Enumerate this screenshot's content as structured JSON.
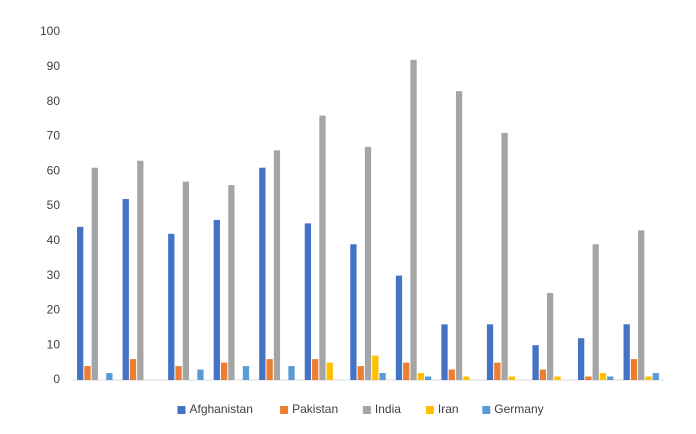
{
  "chart_data": {
    "type": "bar",
    "categories": [
      null,
      null,
      null,
      null,
      null,
      null,
      null,
      null,
      null,
      null,
      null,
      null,
      null
    ],
    "series": [
      {
        "name": "Afghanistan",
        "color": "#4472c4",
        "values": [
          44,
          52,
          42,
          46,
          61,
          45,
          39,
          30,
          16,
          16,
          10,
          12,
          16
        ]
      },
      {
        "name": "Pakistan",
        "color": "#ed7d31",
        "values": [
          4,
          6,
          4,
          5,
          6,
          6,
          4,
          5,
          3,
          5,
          3,
          1,
          6
        ]
      },
      {
        "name": "India",
        "color": "#a5a5a5",
        "values": [
          61,
          63,
          57,
          56,
          66,
          76,
          67,
          92,
          83,
          71,
          25,
          39,
          43
        ]
      },
      {
        "name": "Iran",
        "color": "#ffc000",
        "values": [
          0,
          0,
          0,
          0,
          0,
          5,
          7,
          2,
          1,
          1,
          1,
          2,
          1
        ]
      },
      {
        "name": "Germany",
        "color": "#5b9bd5",
        "values": [
          2,
          0,
          3,
          4,
          4,
          0,
          2,
          1,
          0,
          0,
          0,
          1,
          2
        ]
      }
    ],
    "ylim": [
      0,
      100
    ],
    "yticks": [
      0,
      10,
      20,
      30,
      40,
      50,
      60,
      70,
      80,
      90,
      100
    ],
    "grid": false,
    "legend": "bottom"
  }
}
